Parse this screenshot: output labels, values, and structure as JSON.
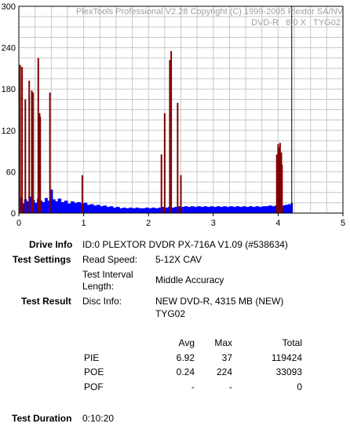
{
  "chart_data": {
    "type": "bar",
    "title": "PlexTools Professional V2.28 Copyright (C) 1999-2005 Plextor SA/NV",
    "subtitle_media": "DVD-R",
    "subtitle_speed": "8.0 X",
    "subtitle_disc": "TYG02",
    "xlim": [
      0,
      5
    ],
    "ylim": [
      0,
      300
    ],
    "x_ticks": [
      "0",
      "1",
      "2",
      "3",
      "4",
      "5"
    ],
    "y_ticks": [
      "0",
      "60",
      "120",
      "180",
      "240",
      "300"
    ],
    "grid": true,
    "end_marker_x": 4.21,
    "series": [
      {
        "name": "PIE",
        "color": "#0000ff",
        "points": [
          [
            0.02,
            22
          ],
          [
            0.05,
            14
          ],
          [
            0.08,
            20
          ],
          [
            0.12,
            17
          ],
          [
            0.16,
            24
          ],
          [
            0.2,
            19
          ],
          [
            0.24,
            15
          ],
          [
            0.28,
            21
          ],
          [
            0.32,
            18
          ],
          [
            0.36,
            16
          ],
          [
            0.4,
            22
          ],
          [
            0.44,
            18
          ],
          [
            0.48,
            34
          ],
          [
            0.52,
            20
          ],
          [
            0.56,
            17
          ],
          [
            0.6,
            21
          ],
          [
            0.65,
            16
          ],
          [
            0.7,
            18
          ],
          [
            0.75,
            14
          ],
          [
            0.8,
            17
          ],
          [
            0.85,
            15
          ],
          [
            0.9,
            16
          ],
          [
            0.95,
            14
          ],
          [
            1.0,
            15
          ],
          [
            1.05,
            12
          ],
          [
            1.1,
            13
          ],
          [
            1.15,
            11
          ],
          [
            1.2,
            12
          ],
          [
            1.25,
            10
          ],
          [
            1.3,
            11
          ],
          [
            1.35,
            9
          ],
          [
            1.4,
            10
          ],
          [
            1.45,
            8
          ],
          [
            1.5,
            9
          ],
          [
            1.55,
            7
          ],
          [
            1.6,
            8
          ],
          [
            1.65,
            7
          ],
          [
            1.7,
            8
          ],
          [
            1.75,
            7
          ],
          [
            1.8,
            8
          ],
          [
            1.85,
            7
          ],
          [
            1.9,
            7
          ],
          [
            1.95,
            8
          ],
          [
            2.0,
            7
          ],
          [
            2.05,
            8
          ],
          [
            2.1,
            7
          ],
          [
            2.15,
            8
          ],
          [
            2.2,
            9
          ],
          [
            2.25,
            8
          ],
          [
            2.3,
            9
          ],
          [
            2.35,
            8
          ],
          [
            2.4,
            9
          ],
          [
            2.45,
            10
          ],
          [
            2.5,
            9
          ],
          [
            2.55,
            10
          ],
          [
            2.6,
            9
          ],
          [
            2.65,
            10
          ],
          [
            2.7,
            9
          ],
          [
            2.75,
            10
          ],
          [
            2.8,
            9
          ],
          [
            2.85,
            10
          ],
          [
            2.9,
            9
          ],
          [
            2.95,
            10
          ],
          [
            3.0,
            9
          ],
          [
            3.05,
            10
          ],
          [
            3.1,
            9
          ],
          [
            3.15,
            10
          ],
          [
            3.2,
            9
          ],
          [
            3.25,
            10
          ],
          [
            3.3,
            9
          ],
          [
            3.35,
            10
          ],
          [
            3.4,
            9
          ],
          [
            3.45,
            10
          ],
          [
            3.5,
            9
          ],
          [
            3.55,
            10
          ],
          [
            3.6,
            9
          ],
          [
            3.65,
            10
          ],
          [
            3.7,
            9
          ],
          [
            3.75,
            10
          ],
          [
            3.8,
            10
          ],
          [
            3.85,
            11
          ],
          [
            3.9,
            10
          ],
          [
            3.95,
            11
          ],
          [
            4.0,
            12
          ],
          [
            4.05,
            11
          ],
          [
            4.1,
            12
          ],
          [
            4.15,
            13
          ],
          [
            4.2,
            15
          ]
        ]
      },
      {
        "name": "PIF",
        "color": "#800000",
        "points": [
          [
            0.02,
            215
          ],
          [
            0.05,
            212
          ],
          [
            0.1,
            165
          ],
          [
            0.16,
            192
          ],
          [
            0.2,
            178
          ],
          [
            0.22,
            175
          ],
          [
            0.3,
            225
          ],
          [
            0.32,
            145
          ],
          [
            0.33,
            140
          ],
          [
            0.48,
            175
          ],
          [
            0.98,
            55
          ],
          [
            2.2,
            85
          ],
          [
            2.25,
            145
          ],
          [
            2.33,
            222
          ],
          [
            2.35,
            235
          ],
          [
            2.45,
            160
          ],
          [
            2.5,
            55
          ],
          [
            3.98,
            85
          ],
          [
            4.0,
            100
          ],
          [
            4.02,
            95
          ],
          [
            4.03,
            102
          ],
          [
            4.05,
            88
          ],
          [
            4.06,
            70
          ]
        ]
      }
    ]
  },
  "info": {
    "drive_label": "Drive Info",
    "drive_value": "ID:0 PLEXTOR DVDR PX-716A V1.09 (#538634)",
    "settings_label": "Test Settings",
    "read_speed_label": "Read Speed:",
    "read_speed_value": "5-12X CAV",
    "interval_label_1": "Test Interval",
    "interval_label_2": "Length:",
    "interval_value": "Middle Accuracy",
    "result_label": "Test Result",
    "disc_info_label": "Disc Info:",
    "disc_info_value_1": "NEW DVD-R, 4315 MB (NEW)",
    "disc_info_value_2": "TYG02",
    "duration_label": "Test Duration",
    "duration_value": "0:10:20"
  },
  "results_table": {
    "headers": [
      "",
      "Avg",
      "Max",
      "Total"
    ],
    "rows": [
      {
        "name": "PIE",
        "avg": "6.92",
        "max": "37",
        "total": "119424"
      },
      {
        "name": "POE",
        "avg": "0.24",
        "max": "224",
        "total": "33093"
      },
      {
        "name": "POF",
        "avg": "-",
        "max": "-",
        "total": "0"
      }
    ]
  }
}
